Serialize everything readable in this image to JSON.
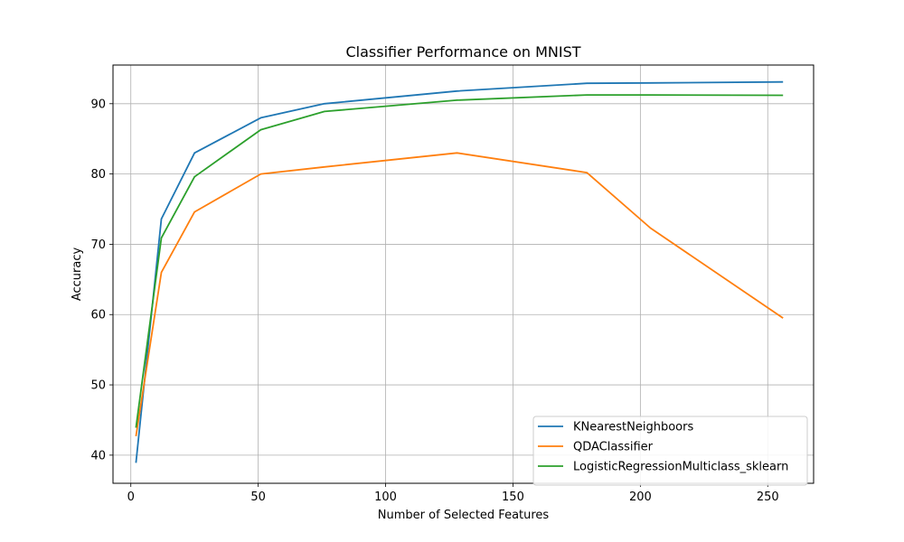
{
  "chart_data": {
    "type": "line",
    "title": "Classifier Performance on MNIST",
    "xlabel": "Number of Selected Features",
    "ylabel": "Accuracy",
    "xlim": [
      -7,
      268
    ],
    "ylim": [
      36,
      95.5
    ],
    "xticks": [
      0,
      50,
      100,
      150,
      200,
      250
    ],
    "yticks": [
      40,
      50,
      60,
      70,
      80,
      90
    ],
    "grid": true,
    "legend_position": "lower-right",
    "series": [
      {
        "name": "KNearestNeighboors",
        "color": "#1f77b4",
        "x": [
          2,
          12,
          25,
          51,
          76,
          128,
          179,
          204,
          256
        ],
        "y": [
          38.9,
          73.6,
          83.0,
          88.0,
          90.0,
          91.8,
          92.9,
          92.95,
          93.1
        ]
      },
      {
        "name": "QDAClassifier",
        "color": "#ff7f0e",
        "x": [
          2,
          12,
          25,
          51,
          76,
          128,
          179,
          204,
          256
        ],
        "y": [
          42.7,
          66.0,
          74.6,
          80.0,
          81.0,
          83.0,
          80.2,
          72.3,
          59.5
        ]
      },
      {
        "name": "LogisticRegressionMulticlass_sklearn",
        "color": "#2ca02c",
        "x": [
          2,
          12,
          25,
          51,
          76,
          128,
          179,
          204,
          256
        ],
        "y": [
          43.9,
          70.9,
          79.6,
          86.3,
          88.9,
          90.5,
          91.25,
          91.25,
          91.2
        ]
      }
    ]
  }
}
